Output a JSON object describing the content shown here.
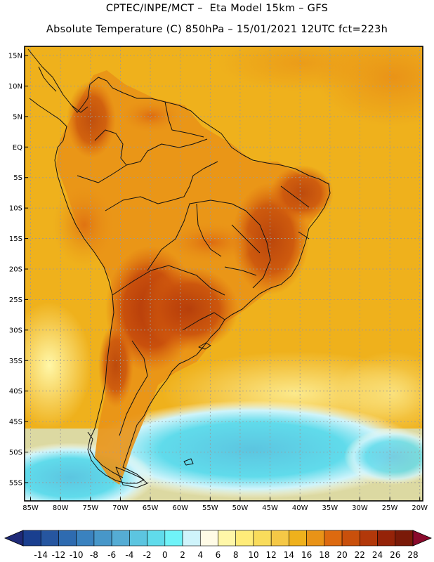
{
  "header": {
    "line1": "CPTEC/INPE/MCT –  Eta Model 15km – GFS",
    "line2": "Absolute Temperature (C) 850hPa – 15/01/2021 12UTC fct=223h"
  },
  "axes": {
    "lat_labels": [
      "15N",
      "10N",
      "5N",
      "EQ",
      "5S",
      "10S",
      "15S",
      "20S",
      "25S",
      "30S",
      "35S",
      "40S",
      "45S",
      "50S",
      "55S"
    ],
    "lat_values": [
      15,
      10,
      5,
      0,
      -5,
      -10,
      -15,
      -20,
      -25,
      -30,
      -35,
      -40,
      -45,
      -50,
      -55
    ],
    "lon_labels": [
      "85W",
      "80W",
      "75W",
      "70W",
      "65W",
      "60W",
      "55W",
      "50W",
      "45W",
      "40W",
      "35W",
      "30W",
      "25W",
      "20W"
    ],
    "lon_values": [
      -85,
      -80,
      -75,
      -70,
      -65,
      -60,
      -55,
      -50,
      -45,
      -40,
      -35,
      -30,
      -25,
      -20
    ],
    "lon_range": [
      -86,
      -19.5
    ],
    "lat_range": [
      -58,
      16.5
    ]
  },
  "colorbar": {
    "labels": [
      "-14",
      "-12",
      "-10",
      "-8",
      "-6",
      "-4",
      "-2",
      "0",
      "2",
      "4",
      "6",
      "8",
      "10",
      "12",
      "14",
      "16",
      "18",
      "20",
      "22",
      "24",
      "26",
      "28"
    ],
    "colors": [
      "#1a3f8f",
      "#2656a0",
      "#2e6bb0",
      "#3a82bf",
      "#4797c9",
      "#55acd4",
      "#5cc5e0",
      "#60dbeb",
      "#6ff3f8",
      "#cff4fb",
      "#fffbe6",
      "#fff7a8",
      "#ffec79",
      "#f9dc5b",
      "#f5c846",
      "#efb11c",
      "#e99317",
      "#dd6a10",
      "#c9500c",
      "#b2380a",
      "#952308",
      "#7a1a08"
    ],
    "under_color": "#1f2a78",
    "over_color": "#8a0a2c"
  }
}
